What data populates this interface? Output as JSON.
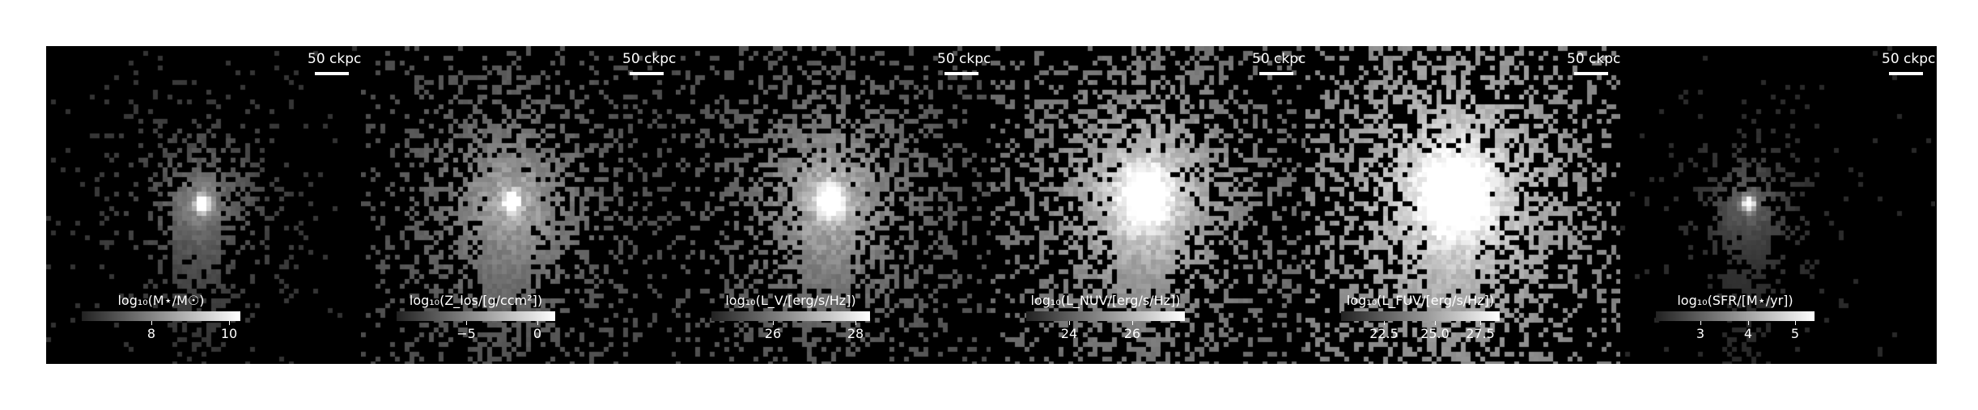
{
  "panels": [
    {
      "scale_label": "50 ckpc",
      "cbar_title": "log₁₀(M⋆/M☉)",
      "ticks": [
        {
          "label": "8",
          "frac": 0.44
        },
        {
          "label": "10",
          "frac": 0.93
        }
      ]
    },
    {
      "scale_label": "50 ckpc",
      "cbar_title": "log₁₀(Z_los/[g/ccm²])",
      "ticks": [
        {
          "label": "−5",
          "frac": 0.44
        },
        {
          "label": "0",
          "frac": 0.89
        }
      ]
    },
    {
      "scale_label": "50 ckpc",
      "cbar_title": "log₁₀(L_V/[erg/s/Hz])",
      "ticks": [
        {
          "label": "26",
          "frac": 0.39
        },
        {
          "label": "28",
          "frac": 0.91
        }
      ]
    },
    {
      "scale_label": "50 ckpc",
      "cbar_title": "log₁₀(L_NUV/[erg/s/Hz])",
      "ticks": [
        {
          "label": "24",
          "frac": 0.27
        },
        {
          "label": "26",
          "frac": 0.67
        }
      ]
    },
    {
      "scale_label": "50 ckpc",
      "cbar_title": "log₁₀(L_FUV/[erg/s/Hz])",
      "ticks": [
        {
          "label": "22.5",
          "frac": 0.27
        },
        {
          "label": "25.0",
          "frac": 0.59
        },
        {
          "label": "27.5",
          "frac": 0.88
        }
      ]
    },
    {
      "scale_label": "50 ckpc",
      "cbar_title": "log₁₀(SFR/[M⋆/yr])",
      "ticks": [
        {
          "label": "3",
          "frac": 0.28
        },
        {
          "label": "4",
          "frac": 0.58
        },
        {
          "label": "5",
          "frac": 0.88
        }
      ]
    }
  ]
}
